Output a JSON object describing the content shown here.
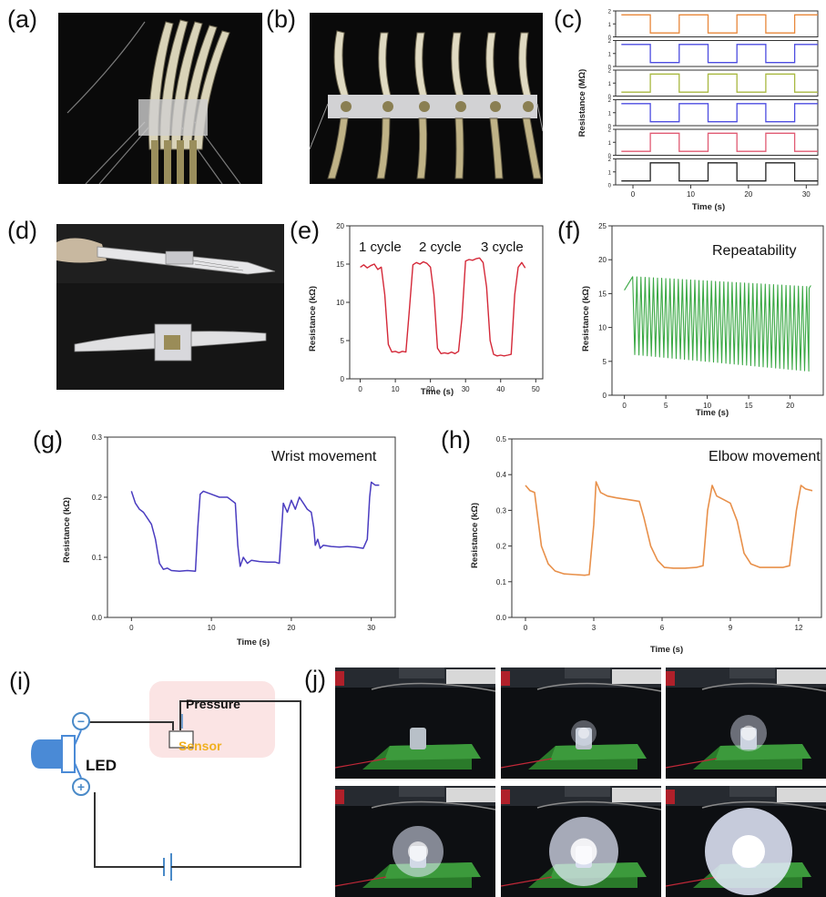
{
  "panel_labels": [
    "(a)",
    "(b)",
    "(c)",
    "(d)",
    "(e)",
    "(f)",
    "(g)",
    "(h)",
    "(i)",
    "(j)"
  ],
  "chart_data": [
    {
      "id": "c",
      "type": "line",
      "xlabel": "Time (s)",
      "ylabel": "Resistance (MΩ)",
      "xticks": [
        0,
        10,
        20,
        30
      ],
      "xlim": [
        -3,
        32
      ],
      "rows": [
        {
          "color": "#e8873a",
          "ylim": [
            0,
            2
          ],
          "yticks": [
            0,
            1,
            2
          ],
          "x": [
            -2,
            3,
            3,
            8,
            8,
            13,
            13,
            18,
            18,
            23,
            23,
            28,
            28,
            32
          ],
          "y": [
            1.7,
            1.7,
            0.3,
            0.3,
            1.7,
            1.7,
            0.3,
            0.3,
            1.7,
            1.7,
            0.3,
            0.3,
            1.7,
            1.7
          ]
        },
        {
          "color": "#4c4ce0",
          "ylim": [
            0,
            2
          ],
          "yticks": [
            0,
            1,
            2
          ],
          "x": [
            -2,
            3,
            3,
            8,
            8,
            13,
            13,
            18,
            18,
            23,
            23,
            28,
            28,
            32
          ],
          "y": [
            1.7,
            1.7,
            0.3,
            0.3,
            1.7,
            1.7,
            0.3,
            0.3,
            1.7,
            1.7,
            0.3,
            0.3,
            1.7,
            1.7
          ]
        },
        {
          "color": "#a8b840",
          "ylim": [
            0,
            2
          ],
          "yticks": [
            0,
            1,
            2
          ],
          "x": [
            -2,
            3,
            3,
            8,
            8,
            13,
            13,
            18,
            18,
            23,
            23,
            28,
            28,
            32
          ],
          "y": [
            0.3,
            0.3,
            1.7,
            1.7,
            0.3,
            0.3,
            1.7,
            1.7,
            0.3,
            0.3,
            1.7,
            1.7,
            0.3,
            0.3
          ]
        },
        {
          "color": "#4c4ce0",
          "ylim": [
            0,
            2
          ],
          "yticks": [
            0,
            1,
            2
          ],
          "x": [
            -2,
            3,
            3,
            8,
            8,
            13,
            13,
            18,
            18,
            23,
            23,
            28,
            28,
            32
          ],
          "y": [
            1.7,
            1.7,
            0.3,
            0.3,
            1.7,
            1.7,
            0.3,
            0.3,
            1.7,
            1.7,
            0.3,
            0.3,
            1.7,
            1.7
          ]
        },
        {
          "color": "#e05a72",
          "ylim": [
            0,
            2
          ],
          "yticks": [
            0,
            1,
            2
          ],
          "x": [
            -2,
            3,
            3,
            8,
            8,
            13,
            13,
            18,
            18,
            23,
            23,
            28,
            28,
            32
          ],
          "y": [
            0.3,
            0.3,
            1.7,
            1.7,
            0.3,
            0.3,
            1.7,
            1.7,
            0.3,
            0.3,
            1.7,
            1.7,
            0.3,
            0.3
          ]
        },
        {
          "color": "#222222",
          "ylim": [
            0,
            2
          ],
          "yticks": [
            0,
            1,
            2
          ],
          "x": [
            -2,
            3,
            3,
            8,
            8,
            13,
            13,
            18,
            18,
            23,
            23,
            28,
            28,
            32
          ],
          "y": [
            0.3,
            0.3,
            1.7,
            1.7,
            0.3,
            0.3,
            1.7,
            1.7,
            0.3,
            0.3,
            1.7,
            1.7,
            0.3,
            0.3
          ]
        }
      ]
    },
    {
      "id": "e",
      "type": "line",
      "color": "#d42838",
      "xlabel": "Time (s)",
      "ylabel": "Resistance (kΩ)",
      "xlim": [
        -3,
        52
      ],
      "ylim": [
        0,
        20
      ],
      "xticks": [
        0,
        10,
        20,
        30,
        40,
        50
      ],
      "yticks": [
        0,
        5,
        10,
        15,
        20
      ],
      "annotations": [
        "1 cycle",
        "2 cycle",
        "3 cycle"
      ],
      "x": [
        0,
        1,
        2,
        3,
        4,
        5,
        6,
        7,
        8,
        9,
        10,
        11,
        12,
        13,
        14,
        15,
        16,
        17,
        18,
        19,
        20,
        21,
        22,
        23,
        24,
        25,
        26,
        27,
        28,
        29,
        30,
        31,
        32,
        33,
        34,
        35,
        36,
        37,
        38,
        39,
        40,
        41,
        42,
        43,
        44,
        45,
        46,
        47
      ],
      "y": [
        14.6,
        14.9,
        14.5,
        14.8,
        15.0,
        14.3,
        14.6,
        11.0,
        4.5,
        3.5,
        3.6,
        3.4,
        3.6,
        3.5,
        9.0,
        14.9,
        15.2,
        15.0,
        15.3,
        15.1,
        14.6,
        11.0,
        4.0,
        3.3,
        3.4,
        3.3,
        3.5,
        3.3,
        3.6,
        8.0,
        15.4,
        15.6,
        15.5,
        15.7,
        15.8,
        15.2,
        12.0,
        5.0,
        3.2,
        3.0,
        3.1,
        3.0,
        3.1,
        3.2,
        11.0,
        14.6,
        15.2,
        14.5
      ]
    },
    {
      "id": "f",
      "type": "line",
      "color": "#3aa844",
      "title": "Repeatability",
      "xlabel": "Time (s)",
      "ylabel": "Resistance (kΩ)",
      "xlim": [
        -1.5,
        24
      ],
      "ylim": [
        0,
        25
      ],
      "xticks": [
        0,
        5,
        10,
        15,
        20
      ],
      "yticks": [
        0,
        5,
        10,
        15,
        20,
        25
      ],
      "cycle_period_s": 0.5,
      "x_range": [
        0,
        22.5
      ],
      "baseline_start": [
        0,
        15.5
      ],
      "peak_high": [
        17.5,
        16.0
      ],
      "trough_low": [
        6.0,
        3.5
      ]
    },
    {
      "id": "g",
      "type": "line",
      "color": "#4a3cc0",
      "title": "Wrist movement",
      "xlabel": "Time (s)",
      "ylabel": "Resistance (kΩ)",
      "xlim": [
        -3,
        33
      ],
      "ylim": [
        0,
        0.3
      ],
      "xticks": [
        0,
        10,
        20,
        30
      ],
      "yticks": [
        0.0,
        0.1,
        0.2,
        0.3
      ],
      "x": [
        0,
        0.5,
        1,
        1.5,
        2,
        2.5,
        3,
        3.5,
        4,
        4.5,
        5,
        6,
        7,
        8,
        8.3,
        8.6,
        9,
        10,
        11,
        12,
        12.5,
        13,
        13.3,
        13.6,
        14,
        14.5,
        15,
        16,
        17,
        18,
        18.5,
        18.8,
        19,
        19.5,
        20,
        20.5,
        21,
        21.5,
        22,
        22.5,
        22.8,
        23,
        23.3,
        23.6,
        24,
        25,
        26,
        27,
        28,
        29,
        29.5,
        29.8,
        30,
        30.5,
        31
      ],
      "y": [
        0.21,
        0.19,
        0.18,
        0.175,
        0.165,
        0.155,
        0.13,
        0.09,
        0.08,
        0.082,
        0.078,
        0.077,
        0.078,
        0.077,
        0.15,
        0.205,
        0.21,
        0.205,
        0.2,
        0.2,
        0.195,
        0.19,
        0.12,
        0.085,
        0.1,
        0.09,
        0.095,
        0.093,
        0.092,
        0.092,
        0.09,
        0.15,
        0.19,
        0.175,
        0.195,
        0.18,
        0.2,
        0.19,
        0.18,
        0.175,
        0.15,
        0.12,
        0.13,
        0.115,
        0.12,
        0.118,
        0.117,
        0.118,
        0.117,
        0.115,
        0.13,
        0.2,
        0.225,
        0.22,
        0.22
      ]
    },
    {
      "id": "h",
      "type": "line",
      "color": "#e8904a",
      "title": "Elbow movement",
      "xlabel": "Time (s)",
      "ylabel": "Resistance (kΩ)",
      "xlim": [
        -0.6,
        13.0
      ],
      "ylim": [
        0,
        0.5
      ],
      "xticks": [
        0,
        3,
        6,
        9,
        12
      ],
      "yticks": [
        0.0,
        0.1,
        0.2,
        0.3,
        0.4,
        0.5
      ],
      "x": [
        0,
        0.2,
        0.4,
        0.5,
        0.7,
        1.0,
        1.3,
        1.7,
        2.2,
        2.6,
        2.8,
        3.0,
        3.1,
        3.3,
        3.6,
        4.0,
        4.5,
        5.0,
        5.2,
        5.5,
        5.8,
        6.1,
        6.5,
        7.0,
        7.5,
        7.8,
        8.0,
        8.2,
        8.4,
        8.7,
        9.0,
        9.3,
        9.6,
        9.9,
        10.3,
        10.8,
        11.3,
        11.6,
        11.9,
        12.1,
        12.3,
        12.6
      ],
      "y": [
        0.37,
        0.355,
        0.35,
        0.3,
        0.2,
        0.15,
        0.13,
        0.122,
        0.12,
        0.118,
        0.12,
        0.26,
        0.38,
        0.35,
        0.34,
        0.335,
        0.33,
        0.325,
        0.28,
        0.2,
        0.16,
        0.14,
        0.138,
        0.138,
        0.14,
        0.145,
        0.3,
        0.37,
        0.34,
        0.33,
        0.32,
        0.27,
        0.18,
        0.15,
        0.14,
        0.14,
        0.14,
        0.145,
        0.3,
        0.37,
        0.36,
        0.355
      ]
    }
  ],
  "annotations": {
    "e_1": "1 cycle",
    "e_2": "2 cycle",
    "e_3": "3 cycle",
    "f_title": "Repeatability",
    "g_title": "Wrist movement",
    "h_title": "Elbow movement"
  },
  "circuit": {
    "pressure": "Pressure",
    "sensor": "Sensor",
    "led": "LED",
    "minus": "−",
    "plus": "+"
  },
  "axis_text": {
    "c_ylabel": "Resistance (MΩ)",
    "c_xlabel": "Time (s)",
    "e_ylabel": "Resistance (kΩ)",
    "e_xlabel": "Time (s)",
    "f_ylabel": "Resistance (kΩ)",
    "f_xlabel": "Time (s)",
    "g_ylabel": "Resistance (kΩ)",
    "g_xlabel": "Time (s)",
    "h_ylabel": "Resistance (kΩ)",
    "h_xlabel": "Time (s)"
  }
}
